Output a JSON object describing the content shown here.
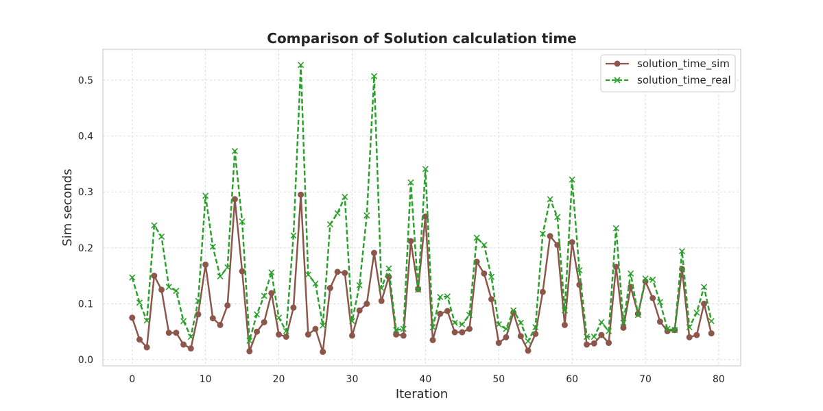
{
  "chart_data": {
    "type": "line",
    "title": "Comparison of Solution calculation time",
    "xlabel": "Iteration",
    "ylabel": "Sim seconds",
    "xlim": [
      -4,
      83
    ],
    "ylim": [
      -0.011,
      0.555
    ],
    "xticks": [
      0,
      10,
      20,
      30,
      40,
      50,
      60,
      70,
      80
    ],
    "yticks": [
      0.0,
      0.1,
      0.2,
      0.3,
      0.4,
      0.5
    ],
    "grid": true,
    "legend_position": "top-right",
    "x": [
      0,
      1,
      2,
      3,
      4,
      5,
      6,
      7,
      8,
      9,
      10,
      11,
      12,
      13,
      14,
      15,
      16,
      17,
      18,
      19,
      20,
      21,
      22,
      23,
      24,
      25,
      26,
      27,
      28,
      29,
      30,
      31,
      32,
      33,
      34,
      35,
      36,
      37,
      38,
      39,
      40,
      41,
      42,
      43,
      44,
      45,
      46,
      47,
      48,
      49,
      50,
      51,
      52,
      53,
      54,
      55,
      56,
      57,
      58,
      59,
      60,
      61,
      62,
      63,
      64,
      65,
      66,
      67,
      68,
      69,
      70,
      71,
      72,
      73,
      74,
      75,
      76,
      77,
      78,
      79
    ],
    "series": [
      {
        "name": "solution_time_sim",
        "color": "#8c564b",
        "marker": "circle",
        "linestyle": "solid",
        "values": [
          0.075,
          0.036,
          0.022,
          0.15,
          0.125,
          0.048,
          0.048,
          0.027,
          0.02,
          0.081,
          0.17,
          0.074,
          0.062,
          0.097,
          0.287,
          0.158,
          0.015,
          0.05,
          0.067,
          0.119,
          0.045,
          0.041,
          0.093,
          0.295,
          0.045,
          0.055,
          0.014,
          0.128,
          0.157,
          0.155,
          0.043,
          0.088,
          0.1,
          0.191,
          0.105,
          0.148,
          0.045,
          0.043,
          0.212,
          0.126,
          0.256,
          0.035,
          0.082,
          0.087,
          0.049,
          0.049,
          0.055,
          0.175,
          0.154,
          0.108,
          0.03,
          0.04,
          0.084,
          0.042,
          0.016,
          0.046,
          0.121,
          0.221,
          0.205,
          0.062,
          0.21,
          0.134,
          0.027,
          0.029,
          0.044,
          0.03,
          0.166,
          0.057,
          0.13,
          0.082,
          0.14,
          0.11,
          0.068,
          0.051,
          0.053,
          0.162,
          0.04,
          0.044,
          0.1,
          0.047
        ]
      },
      {
        "name": "solution_time_real",
        "color": "#2ca02c",
        "marker": "x",
        "linestyle": "dashed",
        "values": [
          0.147,
          0.102,
          0.07,
          0.24,
          0.22,
          0.13,
          0.123,
          0.069,
          0.041,
          0.105,
          0.293,
          0.202,
          0.149,
          0.165,
          0.373,
          0.247,
          0.034,
          0.081,
          0.114,
          0.156,
          0.075,
          0.051,
          0.222,
          0.527,
          0.152,
          0.136,
          0.061,
          0.242,
          0.262,
          0.291,
          0.069,
          0.133,
          0.258,
          0.507,
          0.128,
          0.163,
          0.053,
          0.055,
          0.317,
          0.125,
          0.341,
          0.058,
          0.112,
          0.113,
          0.066,
          0.063,
          0.08,
          0.218,
          0.205,
          0.148,
          0.063,
          0.055,
          0.088,
          0.066,
          0.033,
          0.058,
          0.225,
          0.287,
          0.255,
          0.088,
          0.322,
          0.16,
          0.041,
          0.041,
          0.067,
          0.051,
          0.235,
          0.066,
          0.154,
          0.08,
          0.145,
          0.143,
          0.103,
          0.055,
          0.053,
          0.194,
          0.058,
          0.084,
          0.13,
          0.069
        ]
      }
    ]
  }
}
